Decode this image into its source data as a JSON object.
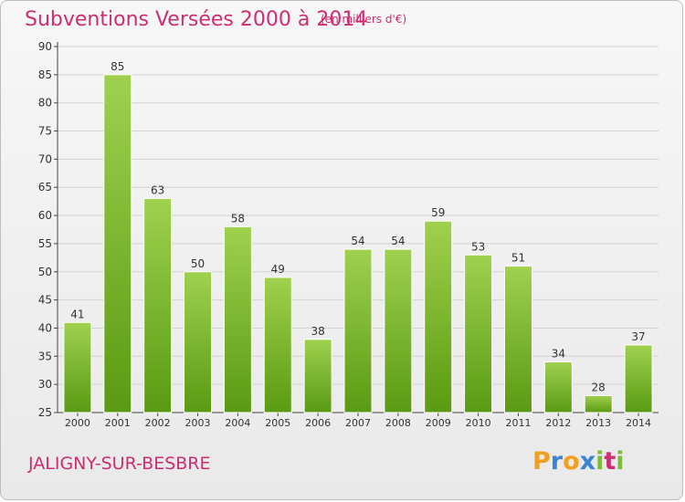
{
  "header": {
    "title": "Subventions Versées 2000 à 2014",
    "subtitle": "(en milliers d'€)"
  },
  "footer": {
    "commune": "JALIGNY-SUR-BESBRE",
    "logo_letters": [
      "P",
      "r",
      "o",
      "x",
      "i",
      "t",
      "i"
    ],
    "logo_colors": [
      "#f0a01e",
      "#3a84d0",
      "#f0a01e",
      "#3a84d0",
      "#7dbb3c",
      "#cc2e72",
      "#7dbb3c"
    ]
  },
  "colors": {
    "title": "#cc2e72",
    "bar_light": "#9fd14e",
    "bar_dark": "#5a9a12",
    "grid": "#d2d2d2"
  },
  "chart_data": {
    "type": "bar",
    "categories": [
      "2000",
      "2001",
      "2002",
      "2003",
      "2004",
      "2005",
      "2006",
      "2007",
      "2008",
      "2009",
      "2010",
      "2011",
      "2012",
      "2013",
      "2014"
    ],
    "values": [
      41,
      85,
      63,
      50,
      58,
      49,
      38,
      54,
      54,
      59,
      53,
      51,
      34,
      28,
      37
    ],
    "ylim": [
      25,
      90
    ],
    "yticks": [
      25,
      30,
      35,
      40,
      45,
      50,
      55,
      60,
      65,
      70,
      75,
      80,
      85,
      90
    ],
    "grid": true,
    "title": "Subventions Versées 2000 à 2014",
    "xlabel": "",
    "ylabel": ""
  }
}
